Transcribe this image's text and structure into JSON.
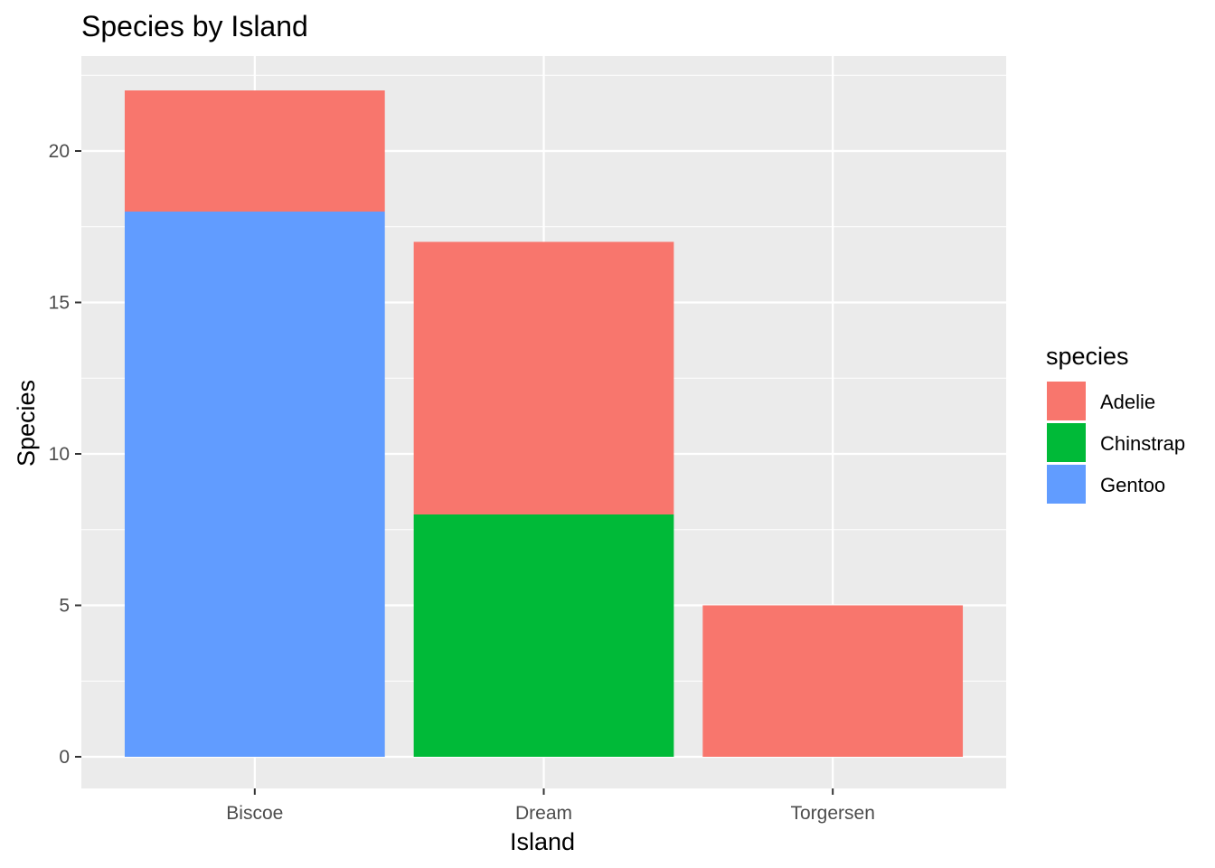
{
  "chart_data": {
    "type": "bar",
    "stacked": true,
    "title": "Species by Island",
    "xlabel": "Island",
    "ylabel": "Species",
    "categories": [
      "Biscoe",
      "Dream",
      "Torgersen"
    ],
    "ylim": [
      0,
      22
    ],
    "yticks": [
      0,
      5,
      10,
      15,
      20
    ],
    "grid": true,
    "legend_title": "species",
    "legend_position": "right",
    "series": [
      {
        "name": "Adelie",
        "color": "#F8766D",
        "values": [
          4,
          9,
          5
        ]
      },
      {
        "name": "Chinstrap",
        "color": "#00BA38",
        "values": [
          0,
          8,
          0
        ]
      },
      {
        "name": "Gentoo",
        "color": "#619CFF",
        "values": [
          18,
          0,
          0
        ]
      }
    ]
  }
}
